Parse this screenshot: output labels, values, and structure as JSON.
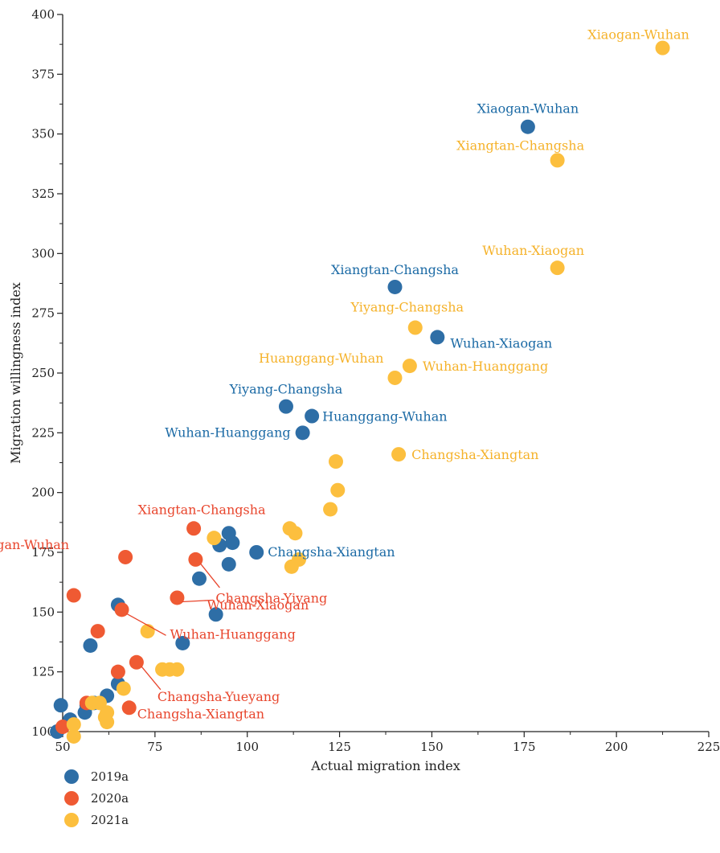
{
  "chart_data": {
    "type": "scatter",
    "xlabel": "Actual migration index",
    "ylabel": "Migration willingness index",
    "xlim": [
      50,
      225
    ],
    "ylim": [
      100,
      400
    ],
    "xticks": [
      "50",
      "75",
      "100",
      "125",
      "150",
      "175",
      "200",
      "225"
    ],
    "yticks": [
      "100",
      "125",
      "150",
      "175",
      "200",
      "225",
      "250",
      "275",
      "300",
      "325",
      "350",
      "375",
      "400"
    ],
    "legend_position": "bottom-left",
    "series": [
      {
        "name": "2019a",
        "color": "#2e6ea6",
        "label_color": "#1b6aa5",
        "points": [
          [
            48.5,
            100
          ],
          [
            49.5,
            111
          ],
          [
            52,
            105
          ],
          [
            56,
            108
          ],
          [
            56.5,
            111
          ],
          [
            57.5,
            136
          ],
          [
            58.5,
            112
          ],
          [
            62,
            115
          ],
          [
            65,
            120
          ],
          [
            65,
            153
          ],
          [
            82.5,
            137
          ],
          [
            87,
            164
          ],
          [
            91.5,
            149
          ],
          [
            92.5,
            178
          ],
          [
            95,
            170
          ],
          [
            95,
            183
          ],
          [
            96,
            179
          ],
          [
            102.5,
            175
          ],
          [
            110.5,
            236
          ],
          [
            115,
            225
          ],
          [
            117.5,
            232
          ],
          [
            140,
            286
          ],
          [
            151.5,
            265
          ],
          [
            176,
            353
          ]
        ],
        "labels": [
          {
            "text": "Xiaogan-Wuhan",
            "x": 176,
            "y": 353
          },
          {
            "text": "Xiangtan-Changsha",
            "x": 140,
            "y": 286
          },
          {
            "text": "Wuhan-Xiaogan",
            "x": 151.5,
            "y": 265
          },
          {
            "text": "Yiyang-Changsha",
            "x": 110.5,
            "y": 236
          },
          {
            "text": "Huanggang-Wuhan",
            "x": 117.5,
            "y": 232
          },
          {
            "text": "Wuhan-Huanggang",
            "x": 115,
            "y": 225
          },
          {
            "text": "Changsha-Xiangtan",
            "x": 102.5,
            "y": 175
          }
        ]
      },
      {
        "name": "2020a",
        "color": "#ef5a33",
        "label_color": "#e8452c",
        "points": [
          [
            50,
            102
          ],
          [
            53,
            157
          ],
          [
            56.5,
            112
          ],
          [
            59.5,
            142
          ],
          [
            65,
            125
          ],
          [
            66,
            151
          ],
          [
            67,
            173
          ],
          [
            68,
            110
          ],
          [
            70,
            129
          ],
          [
            81,
            156
          ],
          [
            85.5,
            185
          ],
          [
            86,
            172
          ]
        ],
        "labels": [
          {
            "text": "Xiangtan-Changsha",
            "x": 85.5,
            "y": 185
          },
          {
            "text": "Xiaogan-Wuhan",
            "x": 67,
            "y": 173
          },
          {
            "text": "Wuhan-Xiaogan",
            "x": 86,
            "y": 172
          },
          {
            "text": "Changsha-Yiyang",
            "x": 81,
            "y": 156
          },
          {
            "text": "Wuhan-Huanggang",
            "x": 66,
            "y": 151
          },
          {
            "text": "Changsha-Yueyang",
            "x": 70,
            "y": 129
          },
          {
            "text": "Changsha-Xiangtan",
            "x": 68,
            "y": 110
          }
        ]
      },
      {
        "name": "2021a",
        "color": "#fcbf3e",
        "label_color": "#f5b22a",
        "points": [
          [
            53,
            98
          ],
          [
            53,
            103
          ],
          [
            58,
            112
          ],
          [
            60,
            112
          ],
          [
            61.5,
            106
          ],
          [
            62,
            108
          ],
          [
            62,
            104
          ],
          [
            66.5,
            118
          ],
          [
            73,
            142
          ],
          [
            77,
            126
          ],
          [
            79,
            126
          ],
          [
            81,
            126
          ],
          [
            91,
            181
          ],
          [
            111.5,
            185
          ],
          [
            112,
            169
          ],
          [
            113,
            183
          ],
          [
            114,
            172
          ],
          [
            122.5,
            193
          ],
          [
            124,
            213
          ],
          [
            124.5,
            201
          ],
          [
            140,
            248
          ],
          [
            141,
            216
          ],
          [
            144,
            253
          ],
          [
            145.5,
            269
          ],
          [
            184,
            294
          ],
          [
            184,
            339
          ],
          [
            212.5,
            386
          ]
        ],
        "labels": [
          {
            "text": "Xiaogan-Wuhan",
            "x": 212.5,
            "y": 386
          },
          {
            "text": "Xiangtan-Changsha",
            "x": 184,
            "y": 339
          },
          {
            "text": "Wuhan-Xiaogan",
            "x": 184,
            "y": 294
          },
          {
            "text": "Yiyang-Changsha",
            "x": 145.5,
            "y": 269
          },
          {
            "text": "Huanggang-Wuhan",
            "x": 140,
            "y": 248
          },
          {
            "text": "Wuhan-Huanggang",
            "x": 144,
            "y": 253
          },
          {
            "text": "Changsha-Xiangtan",
            "x": 141,
            "y": 216
          }
        ]
      }
    ]
  }
}
